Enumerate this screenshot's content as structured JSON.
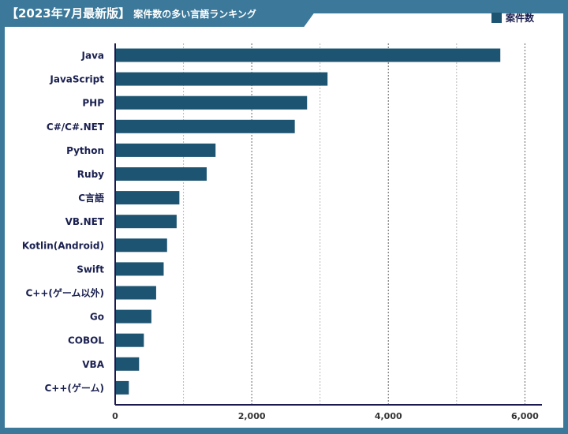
{
  "header": {
    "title": "【2023年7月最新版】",
    "subtitle": "案件数の多い言語ランキング"
  },
  "colors": {
    "bar": "#1d5471",
    "frame": "#3b7899",
    "axis": "#1a1a50"
  },
  "chart_data": {
    "type": "bar",
    "orientation": "horizontal",
    "categories": [
      "Java",
      "JavaScript",
      "PHP",
      "C#/C#.NET",
      "Python",
      "Ruby",
      "C言語",
      "VB.NET",
      "Kotlin(Android)",
      "Swift",
      "C++(ゲーム以外)",
      "Go",
      "COBOL",
      "VBA",
      "C++(ゲーム)"
    ],
    "series": [
      {
        "name": "案件数",
        "values": [
          5640,
          3110,
          2810,
          2630,
          1470,
          1340,
          940,
          900,
          760,
          710,
          600,
          530,
          420,
          350,
          200
        ]
      }
    ],
    "xlim": [
      0,
      6250
    ],
    "xticks": [
      0,
      2000,
      4000,
      6000
    ],
    "xtick_labels": [
      "0",
      "2,000",
      "4,000",
      "6,000"
    ],
    "grid": "vertical dotted every 1000",
    "legend": "top-right",
    "title": "",
    "xlabel": "",
    "ylabel": ""
  }
}
